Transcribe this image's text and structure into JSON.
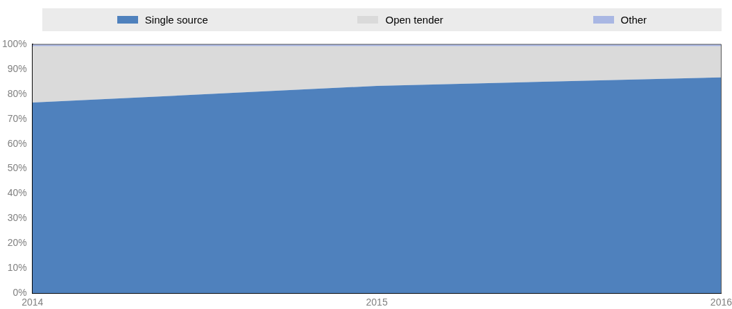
{
  "chart_data": {
    "type": "area",
    "stacked": true,
    "legend": "top",
    "x": [
      2014,
      2015,
      2016
    ],
    "xlim": [
      2014,
      2016
    ],
    "xticks": [
      2014,
      2015,
      2016
    ],
    "ylim": [
      0,
      100
    ],
    "yticks": [
      {
        "value": 0,
        "label": "0%"
      },
      {
        "value": 10,
        "label": "10%"
      },
      {
        "value": 20,
        "label": "20%"
      },
      {
        "value": 30,
        "label": "30%"
      },
      {
        "value": 40,
        "label": "40%"
      },
      {
        "value": 50,
        "label": "50%"
      },
      {
        "value": 60,
        "label": "60%"
      },
      {
        "value": 70,
        "label": "70%"
      },
      {
        "value": 80,
        "label": "80%"
      },
      {
        "value": 90,
        "label": "90%"
      },
      {
        "value": 100,
        "label": "100%"
      }
    ],
    "series": [
      {
        "name": "Single source",
        "color": "#4f81bd",
        "values": [
          76.6,
          83.3,
          86.7
        ]
      },
      {
        "name": "Open tender",
        "color": "#dadada",
        "values": [
          22.6,
          15.9,
          12.5
        ]
      },
      {
        "name": "Other",
        "color": "#a9b7e3",
        "values": [
          0.8,
          0.8,
          0.8
        ]
      }
    ]
  }
}
